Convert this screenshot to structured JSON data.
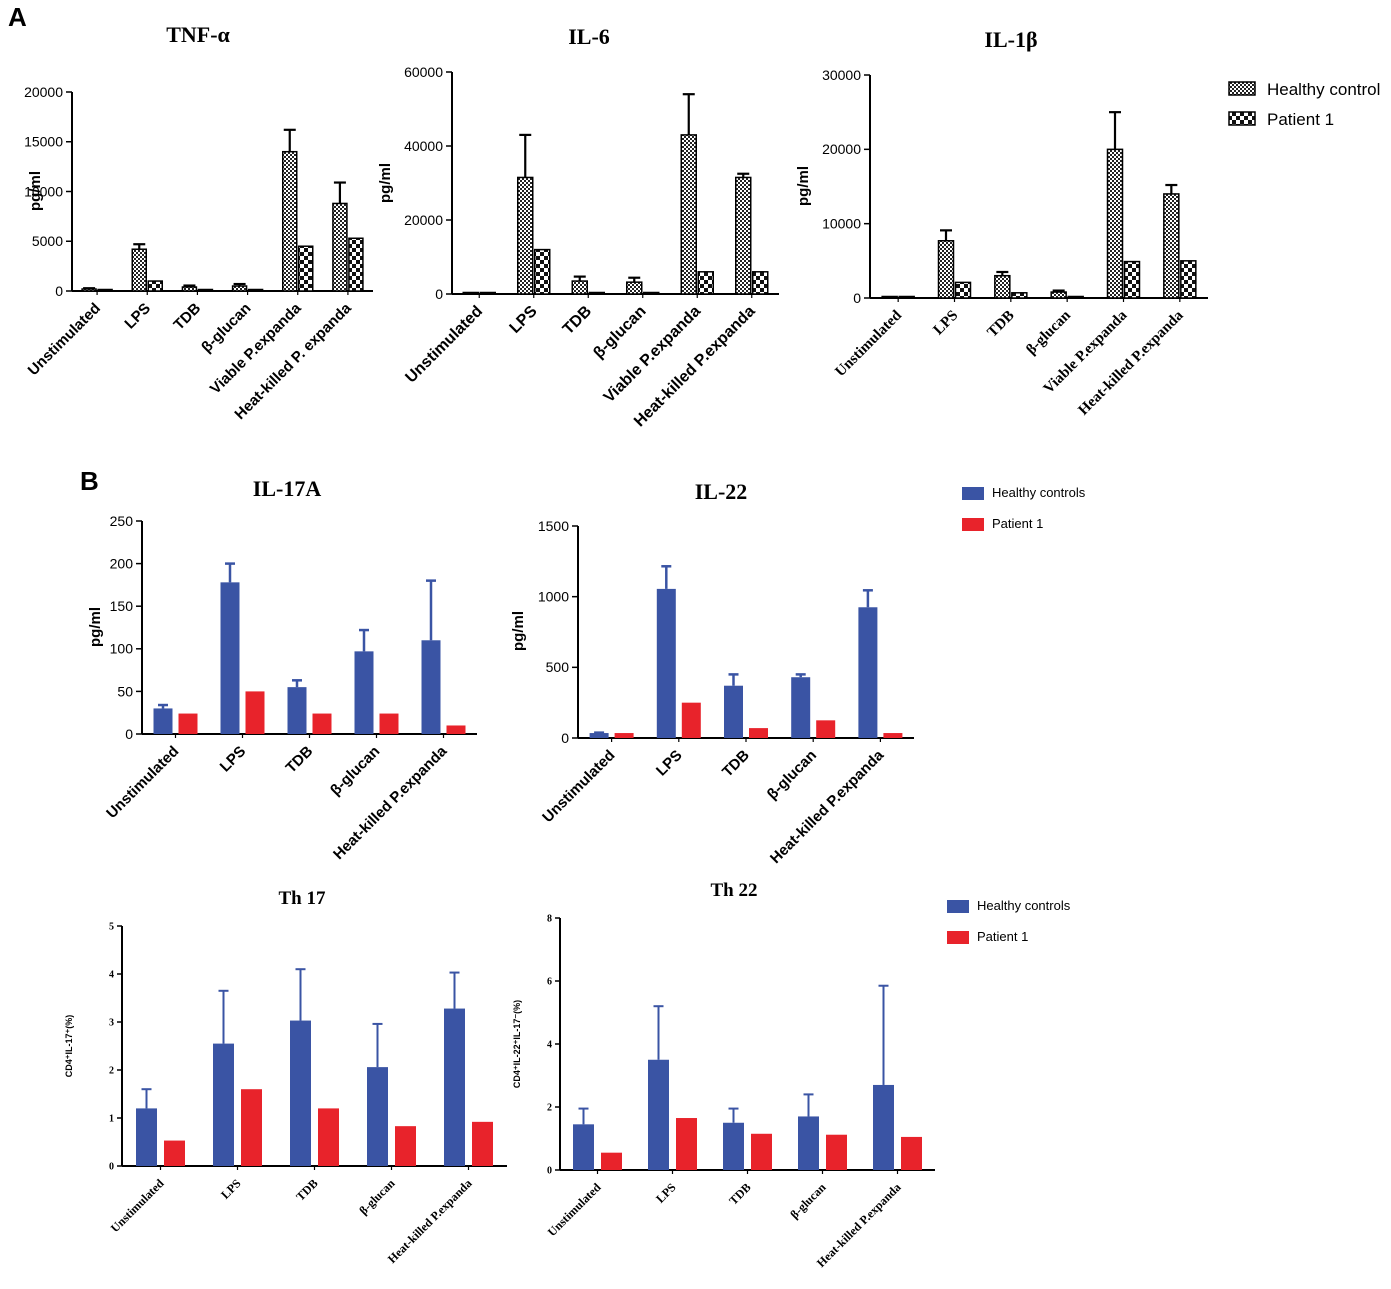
{
  "panels": {
    "a": "A",
    "b": "B"
  },
  "colors": {
    "blue": "#3a54a4",
    "red": "#e8232b",
    "black": "#000000"
  },
  "legends": {
    "A": [
      "Healthy control",
      "Patient 1"
    ],
    "B1": [
      "Healthy controls",
      "Patient 1"
    ],
    "B2": [
      "Healthy controls",
      "Patient 1"
    ]
  },
  "chart_data": [
    {
      "id": "tnf",
      "type": "bar",
      "title": "TNF-α",
      "ylabel": "pg/ml",
      "categories": [
        "Unstimulated",
        "LPS",
        "TDB",
        "β-glucan",
        "Viable P.expanda",
        "Heat-killed P. expanda"
      ],
      "ylim": [
        0,
        20000
      ],
      "yticks": [
        0,
        5000,
        10000,
        15000,
        20000
      ],
      "series": [
        {
          "name": "Healthy control",
          "values": [
            200,
            4200,
            400,
            500,
            14000,
            8800
          ],
          "errors": [
            80,
            500,
            150,
            200,
            2200,
            2100
          ]
        },
        {
          "name": "Patient 1",
          "values": [
            150,
            1000,
            100,
            100,
            4500,
            5300
          ],
          "errors": [
            0,
            0,
            0,
            0,
            0,
            0
          ]
        }
      ]
    },
    {
      "id": "il6",
      "type": "bar",
      "title": "IL-6",
      "ylabel": "pg/ml",
      "categories": [
        "Unstimulated",
        "LPS",
        "TDB",
        "β-glucan",
        "Viable P.expanda",
        "Heat-killed P.expanda"
      ],
      "ylim": [
        0,
        60000
      ],
      "yticks": [
        0,
        20000,
        40000,
        60000
      ],
      "series": [
        {
          "name": "Healthy control",
          "values": [
            200,
            31500,
            3500,
            3200,
            43000,
            31500
          ],
          "errors": [
            50,
            11500,
            1200,
            1200,
            11000,
            1000
          ]
        },
        {
          "name": "Patient 1",
          "values": [
            200,
            12000,
            300,
            200,
            6000,
            6000
          ],
          "errors": [
            0,
            0,
            0,
            0,
            0,
            0
          ]
        }
      ]
    },
    {
      "id": "il1b",
      "type": "bar",
      "title": "IL-1β",
      "ylabel": "pg/ml",
      "categories": [
        "Unstimulated",
        "LPS",
        "TDB",
        "β-glucan",
        "Viable P.expanda",
        "Heat-killed P.expanda"
      ],
      "ylim": [
        0,
        30000
      ],
      "yticks": [
        0,
        10000,
        20000,
        30000
      ],
      "series": [
        {
          "name": "Healthy control",
          "values": [
            50,
            7700,
            3000,
            800,
            20000,
            14000
          ],
          "errors": [
            20,
            1400,
            500,
            200,
            5000,
            1200
          ]
        },
        {
          "name": "Patient 1",
          "values": [
            50,
            2100,
            700,
            100,
            4900,
            5000
          ],
          "errors": [
            0,
            0,
            0,
            0,
            0,
            0
          ]
        }
      ]
    },
    {
      "id": "il17a",
      "type": "bar",
      "title": "IL-17A",
      "ylabel": "pg/ml",
      "categories": [
        "Unstimulated",
        "LPS",
        "TDB",
        "β-glucan",
        "Heat-killed P.expanda"
      ],
      "ylim": [
        0,
        250
      ],
      "yticks": [
        0,
        50,
        100,
        150,
        200,
        250
      ],
      "series": [
        {
          "name": "Healthy controls",
          "values": [
            30,
            178,
            55,
            97,
            110
          ],
          "errors": [
            4,
            22,
            8,
            25,
            70
          ]
        },
        {
          "name": "Patient 1",
          "values": [
            24,
            50,
            24,
            24,
            10
          ],
          "errors": [
            0,
            0,
            0,
            0,
            0
          ]
        }
      ]
    },
    {
      "id": "il22",
      "type": "bar",
      "title": "IL-22",
      "ylabel": "pg/ml",
      "categories": [
        "Unstimulated",
        "LPS",
        "TDB",
        "β-glucan",
        "Heat-killed P.expanda"
      ],
      "ylim": [
        0,
        1500
      ],
      "yticks": [
        0,
        500,
        1000,
        1500
      ],
      "series": [
        {
          "name": "Healthy controls",
          "values": [
            35,
            1055,
            370,
            430,
            925
          ],
          "errors": [
            3,
            160,
            80,
            20,
            120
          ]
        },
        {
          "name": "Patient 1",
          "values": [
            35,
            250,
            70,
            125,
            35
          ],
          "errors": [
            0,
            0,
            0,
            0,
            0
          ]
        }
      ]
    },
    {
      "id": "th17",
      "type": "bar",
      "title": "Th 17",
      "ylabel": "CD4⁺IL-17⁺(%)",
      "categories": [
        "Unstimulated",
        "LPS",
        "TDB",
        "β-glucan",
        "Heat-killed P.expanda"
      ],
      "ylim": [
        0,
        5
      ],
      "yticks": [
        0,
        1,
        2,
        3,
        4,
        5
      ],
      "series": [
        {
          "name": "Healthy controls",
          "values": [
            1.2,
            2.55,
            3.03,
            2.06,
            3.28
          ],
          "errors": [
            0.4,
            1.1,
            1.07,
            0.9,
            0.75
          ]
        },
        {
          "name": "Patient 1",
          "values": [
            0.53,
            1.6,
            1.2,
            0.83,
            0.92
          ],
          "errors": [
            0,
            0,
            0,
            0,
            0
          ]
        }
      ]
    },
    {
      "id": "th22",
      "type": "bar",
      "title": "Th 22",
      "ylabel": "CD4⁺IL-22⁺IL-17⁻(%)",
      "categories": [
        "Unstimulated",
        "LPS",
        "TDB",
        "β-glucan",
        "Heat-killed P.expanda"
      ],
      "ylim": [
        0,
        8
      ],
      "yticks": [
        0,
        2,
        4,
        6,
        8
      ],
      "series": [
        {
          "name": "Healthy controls",
          "values": [
            1.45,
            3.5,
            1.5,
            1.7,
            2.7
          ],
          "errors": [
            0.5,
            1.7,
            0.45,
            0.7,
            3.15
          ]
        },
        {
          "name": "Patient 1",
          "values": [
            0.55,
            1.65,
            1.15,
            1.12,
            1.05
          ],
          "errors": [
            0,
            0,
            0,
            0,
            0
          ]
        }
      ]
    }
  ]
}
